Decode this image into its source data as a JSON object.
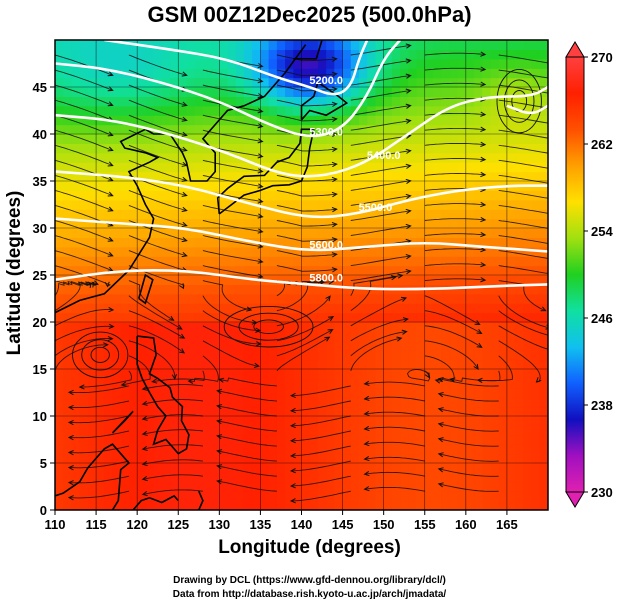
{
  "chart_data": {
    "type": "heatmap",
    "title": "GSM 00Z12Dec2025 (500.0hPa)",
    "xlabel": "Longitude (degrees)",
    "ylabel": "Latitude  (degrees)",
    "xlim": [
      110,
      170
    ],
    "ylim": [
      0,
      50
    ],
    "xticks": [
      110,
      115,
      120,
      125,
      130,
      135,
      140,
      145,
      150,
      155,
      160,
      165
    ],
    "yticks": [
      0,
      5,
      10,
      15,
      20,
      25,
      30,
      35,
      40,
      45
    ],
    "colorbar": {
      "min": 230,
      "max": 270,
      "ticks": [
        230,
        238,
        246,
        254,
        262,
        270
      ],
      "colors": [
        "#e020b0",
        "#a010c0",
        "#1010c0",
        "#1060ff",
        "#10c0f0",
        "#10e0a0",
        "#20d020",
        "#a0e010",
        "#ffe000",
        "#ffa000",
        "#ff5000",
        "#ff2000",
        "#ff4040"
      ]
    },
    "contours": [
      {
        "label": "5200.0",
        "points": [
          [
            116,
            50
          ],
          [
            124,
            49
          ],
          [
            131,
            48
          ],
          [
            137,
            46
          ],
          [
            141,
            45
          ],
          [
            144,
            44
          ],
          [
            146,
            45
          ],
          [
            147,
            48
          ],
          [
            148,
            50
          ]
        ]
      },
      {
        "label": "5300.0",
        "points": [
          [
            110,
            47.5
          ],
          [
            116,
            47
          ],
          [
            123,
            45.5
          ],
          [
            130,
            43.5
          ],
          [
            136,
            41
          ],
          [
            141,
            39.5
          ],
          [
            145,
            40.5
          ],
          [
            148,
            44
          ],
          [
            150,
            48
          ],
          [
            152,
            50
          ]
        ]
      },
      {
        "label": "5400.0",
        "points": [
          [
            110,
            42
          ],
          [
            117,
            41.5
          ],
          [
            124,
            40
          ],
          [
            131,
            38
          ],
          [
            138,
            35.5
          ],
          [
            143,
            35.5
          ],
          [
            148,
            37
          ],
          [
            153,
            40
          ],
          [
            158,
            43
          ],
          [
            163,
            44
          ],
          [
            168,
            44
          ],
          [
            170,
            45
          ]
        ]
      },
      {
        "label": "5500.0",
        "points": [
          [
            110,
            36
          ],
          [
            118,
            35.5
          ],
          [
            126,
            34.5
          ],
          [
            134,
            32.5
          ],
          [
            141,
            31
          ],
          [
            147,
            31.5
          ],
          [
            153,
            33
          ],
          [
            159,
            34
          ],
          [
            165,
            34.5
          ],
          [
            170,
            34.5
          ]
        ]
      },
      {
        "label": "5600.0",
        "points": [
          [
            110,
            31
          ],
          [
            118,
            30.5
          ],
          [
            126,
            30
          ],
          [
            134,
            28.5
          ],
          [
            141,
            27.5
          ],
          [
            148,
            28
          ],
          [
            155,
            28.5
          ],
          [
            162,
            28
          ],
          [
            170,
            27.5
          ]
        ]
      },
      {
        "label": "5800.0",
        "points": [
          [
            110,
            24.5
          ],
          [
            118,
            25.5
          ],
          [
            126,
            25.5
          ],
          [
            134,
            24.5
          ],
          [
            141,
            24
          ],
          [
            148,
            23.5
          ],
          [
            156,
            23.5
          ],
          [
            163,
            23.8
          ],
          [
            170,
            24
          ]
        ]
      },
      {
        "label": "",
        "points": [
          [
            165,
            43
          ],
          [
            168,
            42
          ],
          [
            170,
            43
          ]
        ]
      }
    ]
  },
  "credits": {
    "line1": "Drawing by DCL (https://www.gfd-dennou.org/library/dcl/)",
    "line2": "Data from http://database.rish.kyoto-u.ac.jp/arch/jmadata/"
  }
}
